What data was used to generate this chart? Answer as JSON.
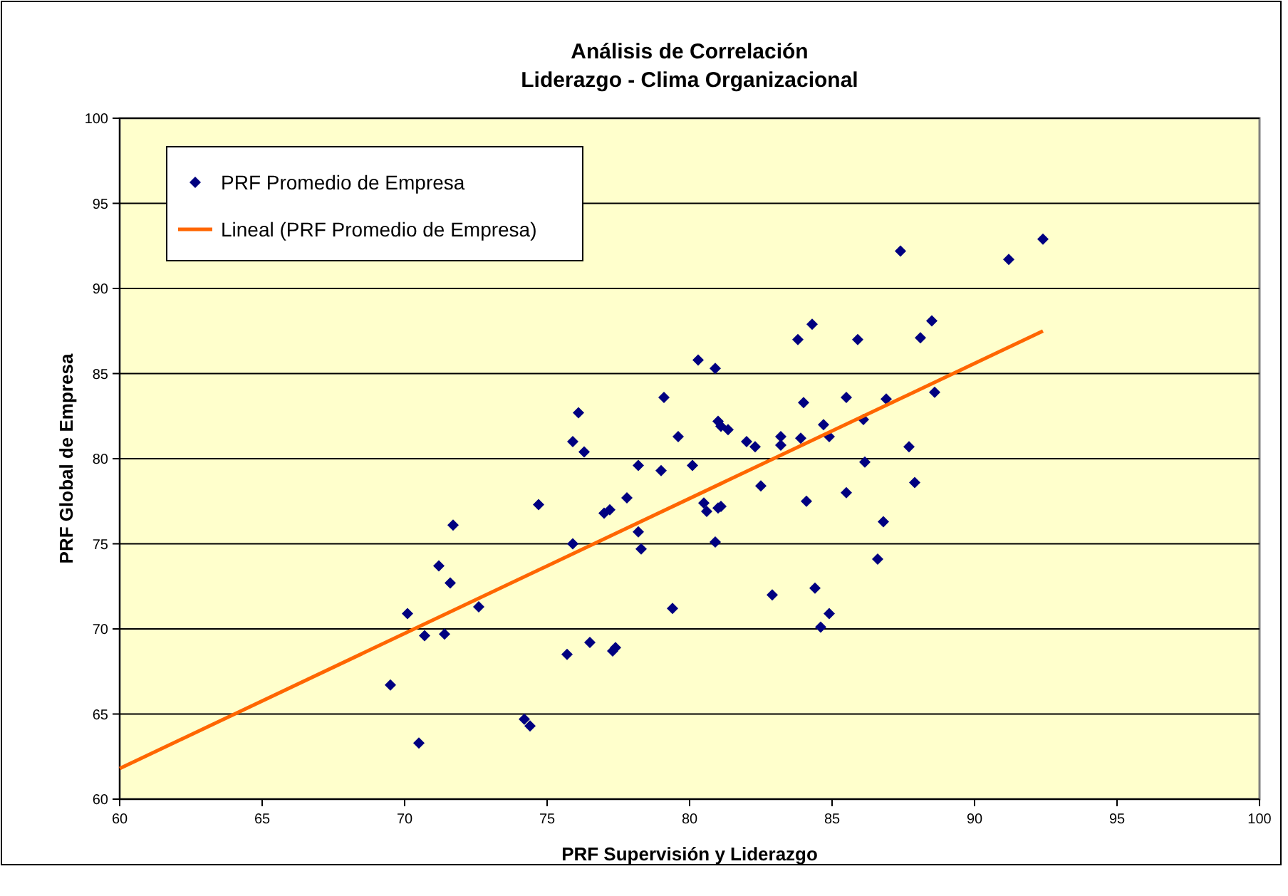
{
  "chart_data": {
    "type": "scatter",
    "title": "Análisis de Correlación\nLiderazgo - Clima Organizacional",
    "xlabel": "PRF Supervisión y Liderazgo",
    "ylabel": "PRF Global de Empresa",
    "xlim": [
      60,
      100
    ],
    "ylim": [
      60,
      100
    ],
    "xticks": [
      60,
      65,
      70,
      75,
      80,
      85,
      90,
      95,
      100
    ],
    "yticks": [
      60,
      65,
      70,
      75,
      80,
      85,
      90,
      95,
      100
    ],
    "grid": "y",
    "legend": "top left",
    "series": [
      {
        "name": "PRF Promedio de Empresa",
        "marker": "diamond",
        "color": "#000080",
        "x": [
          69.5,
          70.1,
          70.5,
          70.7,
          71.2,
          71.4,
          71.6,
          71.7,
          72.6,
          74.2,
          74.4,
          74.7,
          75.7,
          75.9,
          75.9,
          76.1,
          76.3,
          76.5,
          77.0,
          77.2,
          77.3,
          77.4,
          77.8,
          78.2,
          78.2,
          78.3,
          79.0,
          79.1,
          79.4,
          79.6,
          80.1,
          80.3,
          80.5,
          80.6,
          80.9,
          80.9,
          81.0,
          81.0,
          81.1,
          81.1,
          81.35,
          82.0,
          82.3,
          82.5,
          82.9,
          83.2,
          83.2,
          83.8,
          83.9,
          84.0,
          84.1,
          84.3,
          84.4,
          84.6,
          84.7,
          84.9,
          84.9,
          85.5,
          85.5,
          85.9,
          86.1,
          86.15,
          86.6,
          86.8,
          86.9,
          87.4,
          87.7,
          87.9,
          88.1,
          88.5,
          88.6,
          91.2,
          92.4
        ],
        "values": [
          66.7,
          70.9,
          63.3,
          69.6,
          73.7,
          69.7,
          72.7,
          76.1,
          71.3,
          64.7,
          64.3,
          77.3,
          68.5,
          75.0,
          81.0,
          82.7,
          80.4,
          69.2,
          76.8,
          77.0,
          68.7,
          68.9,
          77.7,
          79.6,
          75.7,
          74.7,
          79.3,
          83.6,
          71.2,
          81.3,
          79.6,
          85.8,
          77.4,
          76.9,
          85.3,
          75.1,
          82.2,
          77.1,
          81.9,
          77.2,
          81.7,
          81.0,
          80.7,
          78.4,
          72.0,
          81.3,
          80.8,
          87.0,
          81.2,
          83.3,
          77.5,
          87.9,
          72.4,
          70.1,
          82.0,
          81.3,
          70.9,
          83.6,
          78.0,
          87.0,
          82.3,
          79.8,
          74.1,
          76.3,
          83.5,
          92.2,
          80.7,
          78.6,
          87.1,
          88.1,
          83.9,
          91.7,
          92.9
        ]
      },
      {
        "name": "Lineal (PRF Promedio de Empresa)",
        "type": "line",
        "marker": "none",
        "line_style": "solid",
        "color": "#ff6600",
        "x": [
          60,
          92.4
        ],
        "values": [
          61.8,
          87.5
        ]
      }
    ]
  }
}
